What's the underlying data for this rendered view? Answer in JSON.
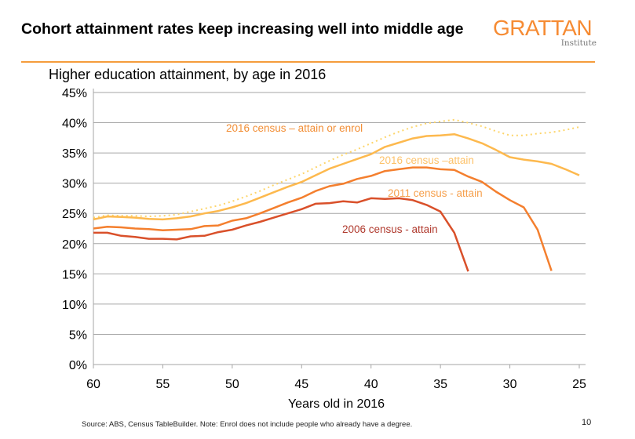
{
  "title": "Cohort attainment rates keep increasing well into middle age",
  "logo": {
    "main": "GRATTAN",
    "sub": "Institute"
  },
  "subtitle": "Higher education attainment, by age in 2016",
  "footer": {
    "source": "Source: ABS, Census TableBuilder.  Note: Enrol does not include people who already have a degree.",
    "page": "10"
  },
  "chart_data": {
    "type": "line",
    "title": "Higher education attainment, by age in 2016",
    "xlabel": "Years old in 2016",
    "ylabel": "",
    "xlim": [
      60,
      25
    ],
    "x_reversed": true,
    "ylim": [
      0,
      45
    ],
    "xticks": [
      "60",
      "55",
      "50",
      "45",
      "40",
      "35",
      "30",
      "25"
    ],
    "yticks": [
      "0%",
      "5%",
      "10%",
      "15%",
      "20%",
      "25%",
      "30%",
      "35%",
      "40%",
      "45%"
    ],
    "grid": "horizontal",
    "legend": "inline labels",
    "series": [
      {
        "name": "2016 census – attain  or enrol",
        "color": "#FDD56A",
        "style": "dotted",
        "x": [
          60,
          59,
          58,
          57,
          56,
          55,
          54,
          53,
          52,
          51,
          50,
          49,
          48,
          47,
          46,
          45,
          44,
          43,
          42,
          41,
          40,
          39,
          38,
          37,
          36,
          35,
          34,
          33,
          32,
          31,
          30,
          29,
          28,
          27,
          26,
          25
        ],
        "y": [
          24.3,
          24.7,
          24.6,
          24.6,
          24.5,
          24.6,
          24.8,
          25.3,
          25.8,
          26.3,
          27.0,
          27.8,
          28.7,
          29.7,
          30.6,
          31.5,
          32.6,
          33.7,
          34.7,
          35.6,
          36.6,
          37.6,
          38.5,
          39.3,
          39.9,
          40.2,
          40.5,
          40.0,
          39.4,
          38.6,
          37.9,
          37.9,
          38.2,
          38.4,
          38.8,
          39.3
        ],
        "label_color": "#F28E35"
      },
      {
        "name": "2016 census –attain",
        "color": "#FDB94E",
        "style": "solid",
        "x": [
          60,
          59,
          58,
          57,
          56,
          55,
          54,
          53,
          52,
          51,
          50,
          49,
          48,
          47,
          46,
          45,
          44,
          43,
          42,
          41,
          40,
          39,
          38,
          37,
          36,
          35,
          34,
          33,
          32,
          31,
          30,
          29,
          28,
          27,
          26,
          25
        ],
        "y": [
          24.0,
          24.5,
          24.4,
          24.3,
          24.1,
          24.0,
          24.2,
          24.5,
          25.0,
          25.4,
          26.0,
          26.7,
          27.6,
          28.5,
          29.4,
          30.2,
          31.3,
          32.4,
          33.2,
          34.0,
          34.8,
          36.0,
          36.7,
          37.4,
          37.8,
          37.9,
          38.1,
          37.4,
          36.6,
          35.5,
          34.3,
          33.9,
          33.6,
          33.2,
          32.3,
          31.3
        ],
        "label_color": "#FDC26A"
      },
      {
        "name": "2011 census - attain",
        "color": "#F47F2E",
        "style": "solid",
        "x": [
          60,
          59,
          58,
          57,
          56,
          55,
          54,
          53,
          52,
          51,
          50,
          49,
          48,
          47,
          46,
          45,
          44,
          43,
          42,
          41,
          40,
          39,
          38,
          37,
          36,
          35,
          34,
          33,
          32,
          31,
          30,
          29,
          28,
          27
        ],
        "y": [
          22.5,
          22.8,
          22.7,
          22.5,
          22.4,
          22.2,
          22.3,
          22.4,
          22.9,
          23.0,
          23.8,
          24.2,
          25.0,
          25.9,
          26.8,
          27.6,
          28.7,
          29.5,
          29.9,
          30.7,
          31.2,
          32.0,
          32.3,
          32.6,
          32.6,
          32.3,
          32.2,
          31.1,
          30.2,
          28.6,
          27.2,
          26.0,
          22.3,
          15.5
        ],
        "label_color": "#F6A04D"
      },
      {
        "name": "2006 census - attain",
        "color": "#D9502A",
        "style": "solid",
        "x": [
          60,
          59,
          58,
          57,
          56,
          55,
          54,
          53,
          52,
          51,
          50,
          49,
          48,
          47,
          46,
          45,
          44,
          43,
          42,
          41,
          40,
          39,
          38,
          37,
          36,
          35,
          34,
          33
        ],
        "y": [
          21.8,
          21.8,
          21.3,
          21.1,
          20.8,
          20.8,
          20.7,
          21.2,
          21.3,
          21.9,
          22.3,
          23.0,
          23.6,
          24.3,
          25.0,
          25.7,
          26.6,
          26.7,
          27.0,
          26.8,
          27.5,
          27.4,
          27.5,
          27.2,
          26.4,
          25.3,
          21.8,
          15.4
        ],
        "label_color": "#B03A2E"
      }
    ]
  }
}
